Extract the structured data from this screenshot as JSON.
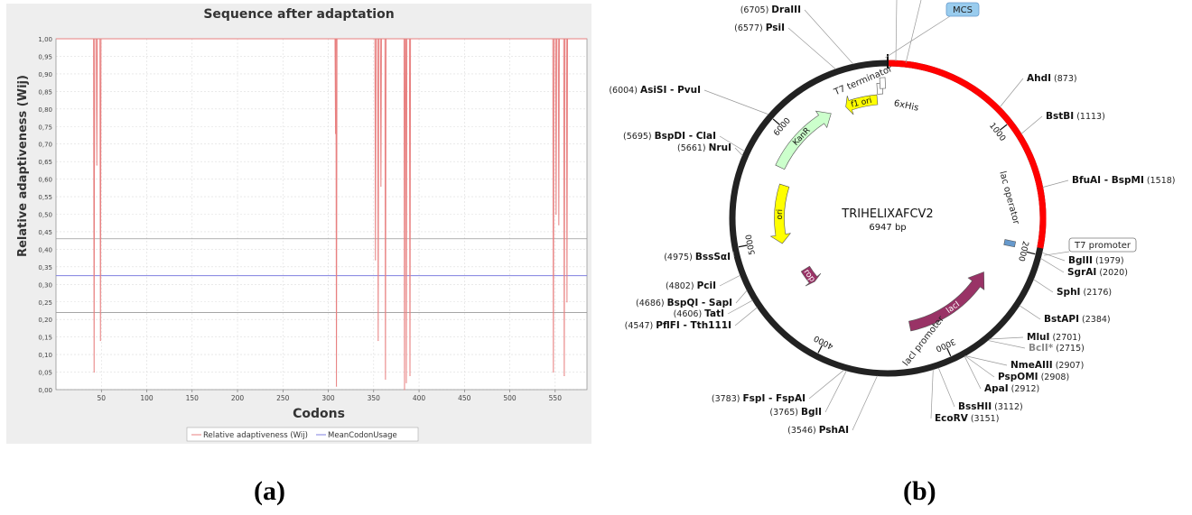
{
  "captions": {
    "a": "(a)",
    "b": "(b)"
  },
  "chart_data": [
    {
      "type": "line",
      "title": "Sequence after adaptation",
      "xlabel": "Codons",
      "ylabel": "Relative adaptiveness (Wij)",
      "xlim": [
        0,
        585
      ],
      "ylim": [
        0,
        1
      ],
      "x_ticks": [
        "50",
        "100",
        "150",
        "200",
        "250",
        "300",
        "350",
        "400",
        "450",
        "500",
        "550"
      ],
      "x_tick_values": [
        50,
        100,
        150,
        200,
        250,
        300,
        350,
        400,
        450,
        500,
        550
      ],
      "y_ticks": [
        "0,00",
        "0,05",
        "0,10",
        "0,15",
        "0,20",
        "0,25",
        "0,30",
        "0,35",
        "0,40",
        "0,45",
        "0,50",
        "0,55",
        "0,60",
        "0,65",
        "0,70",
        "0,75",
        "0,80",
        "0,85",
        "0,90",
        "0,95",
        "1,00"
      ],
      "grid": true,
      "legend_position": "bottom",
      "series": [
        {
          "name": "Relative adaptiveness (Wij)",
          "color": "#e88080",
          "dips": [
            {
              "x": 42,
              "y": 0.05
            },
            {
              "x": 45,
              "y": 0.64
            },
            {
              "x": 49,
              "y": 0.14
            },
            {
              "x": 308,
              "y": 0.73
            },
            {
              "x": 309,
              "y": 0.01
            },
            {
              "x": 352,
              "y": 0.37
            },
            {
              "x": 355,
              "y": 0.14
            },
            {
              "x": 358,
              "y": 0.58
            },
            {
              "x": 363,
              "y": 0.03
            },
            {
              "x": 384,
              "y": 0.0
            },
            {
              "x": 386,
              "y": 0.02
            },
            {
              "x": 390,
              "y": 0.04
            },
            {
              "x": 548,
              "y": 0.05
            },
            {
              "x": 551,
              "y": 0.5
            },
            {
              "x": 554,
              "y": 0.47
            },
            {
              "x": 560,
              "y": 0.04
            },
            {
              "x": 563,
              "y": 0.25
            }
          ],
          "baseline": 1.0
        },
        {
          "name": "MeanCodonUsage",
          "color": "#8080e0",
          "values": [
            0.325
          ]
        }
      ],
      "reference_lines": [
        0.43,
        0.22
      ]
    },
    {
      "type": "plasmid-map",
      "title": "TRIHELIXAFCV2",
      "subtitle": "6947 bp",
      "total_bp": 6947,
      "ring_ticks": [
        {
          "label": "1000",
          "pos": 1000
        },
        {
          "label": "2000",
          "pos": 2000
        },
        {
          "label": "3000",
          "pos": 3000
        },
        {
          "label": "4000",
          "pos": 4000
        },
        {
          "label": "5000",
          "pos": 5000
        },
        {
          "label": "6000",
          "pos": 6000
        }
      ],
      "highlight_region": {
        "start": 0,
        "end": 1950,
        "color": "#ff0000"
      },
      "features": [
        {
          "label": "f1 ori",
          "start": 6550,
          "end": 6850,
          "color": "#ffff00",
          "dir": -1
        },
        {
          "label": "KanR",
          "start": 5700,
          "end": 6400,
          "color": "#ccffcc",
          "dir": 1
        },
        {
          "label": "ori",
          "start": 4950,
          "end": 5550,
          "color": "#ffff00",
          "dir": -1
        },
        {
          "label": "rop",
          "start": 4420,
          "end": 4600,
          "color": "#993366",
          "dir": -1
        },
        {
          "label": "lacI",
          "start": 2300,
          "end": 3250,
          "color": "#993366",
          "dir": -1
        }
      ],
      "inner_labels": [
        {
          "label": "T7 terminator"
        },
        {
          "label": "6xHis"
        },
        {
          "label": "lac operator"
        },
        {
          "label": "lacI promoter"
        }
      ],
      "boxed_labels": [
        {
          "label": "MCS",
          "style": "blue"
        },
        {
          "label": "T7 promoter",
          "style": "outline"
        }
      ],
      "sites": [
        {
          "name": "DraIII",
          "pos": "(6705)",
          "side": "left"
        },
        {
          "name": "PsiI",
          "pos": "(6577)",
          "side": "left"
        },
        {
          "name": "AsiSI - PvuI",
          "pos": "(6004)",
          "side": "left"
        },
        {
          "name": "BspDI - ClaI",
          "pos": "(5695)",
          "side": "left"
        },
        {
          "name": "NruI",
          "pos": "(5661)",
          "side": "left"
        },
        {
          "name": "BssSαI",
          "pos": "(4975)",
          "side": "left"
        },
        {
          "name": "PciI",
          "pos": "(4802)",
          "side": "left"
        },
        {
          "name": "BspQI - SapI",
          "pos": "(4686)",
          "side": "left"
        },
        {
          "name": "TatI",
          "pos": "(4606)",
          "side": "left"
        },
        {
          "name": "PflFI - Tth111I",
          "pos": "(4547)",
          "side": "left"
        },
        {
          "name": "FspI - FspAI",
          "pos": "(3783)",
          "side": "left"
        },
        {
          "name": "BglI",
          "pos": "(3765)",
          "side": "left"
        },
        {
          "name": "PshAI",
          "pos": "(3546)",
          "side": "left"
        },
        {
          "name": "AhdI",
          "pos": "(873)",
          "side": "right"
        },
        {
          "name": "BstBI",
          "pos": "(1113)",
          "side": "right"
        },
        {
          "name": "BfuAI - BspMI",
          "pos": "(1518)",
          "side": "right"
        },
        {
          "name": "BglII",
          "pos": "(1979)",
          "side": "right"
        },
        {
          "name": "SgrAI",
          "pos": "(2020)",
          "side": "right"
        },
        {
          "name": "SphI",
          "pos": "(2176)",
          "side": "right"
        },
        {
          "name": "BstAPI",
          "pos": "(2384)",
          "side": "right"
        },
        {
          "name": "MluI",
          "pos": "(2701)",
          "side": "right"
        },
        {
          "name": "BclI*",
          "pos": "(2715)",
          "side": "right"
        },
        {
          "name": "NmeAIII",
          "pos": "(2907)",
          "side": "right"
        },
        {
          "name": "PspOMI",
          "pos": "(2908)",
          "side": "right"
        },
        {
          "name": "ApaI",
          "pos": "(2912)",
          "side": "right"
        },
        {
          "name": "BssHII",
          "pos": "(3112)",
          "side": "right"
        },
        {
          "name": "EcoRV",
          "pos": "(3151)",
          "side": "right"
        }
      ]
    }
  ]
}
